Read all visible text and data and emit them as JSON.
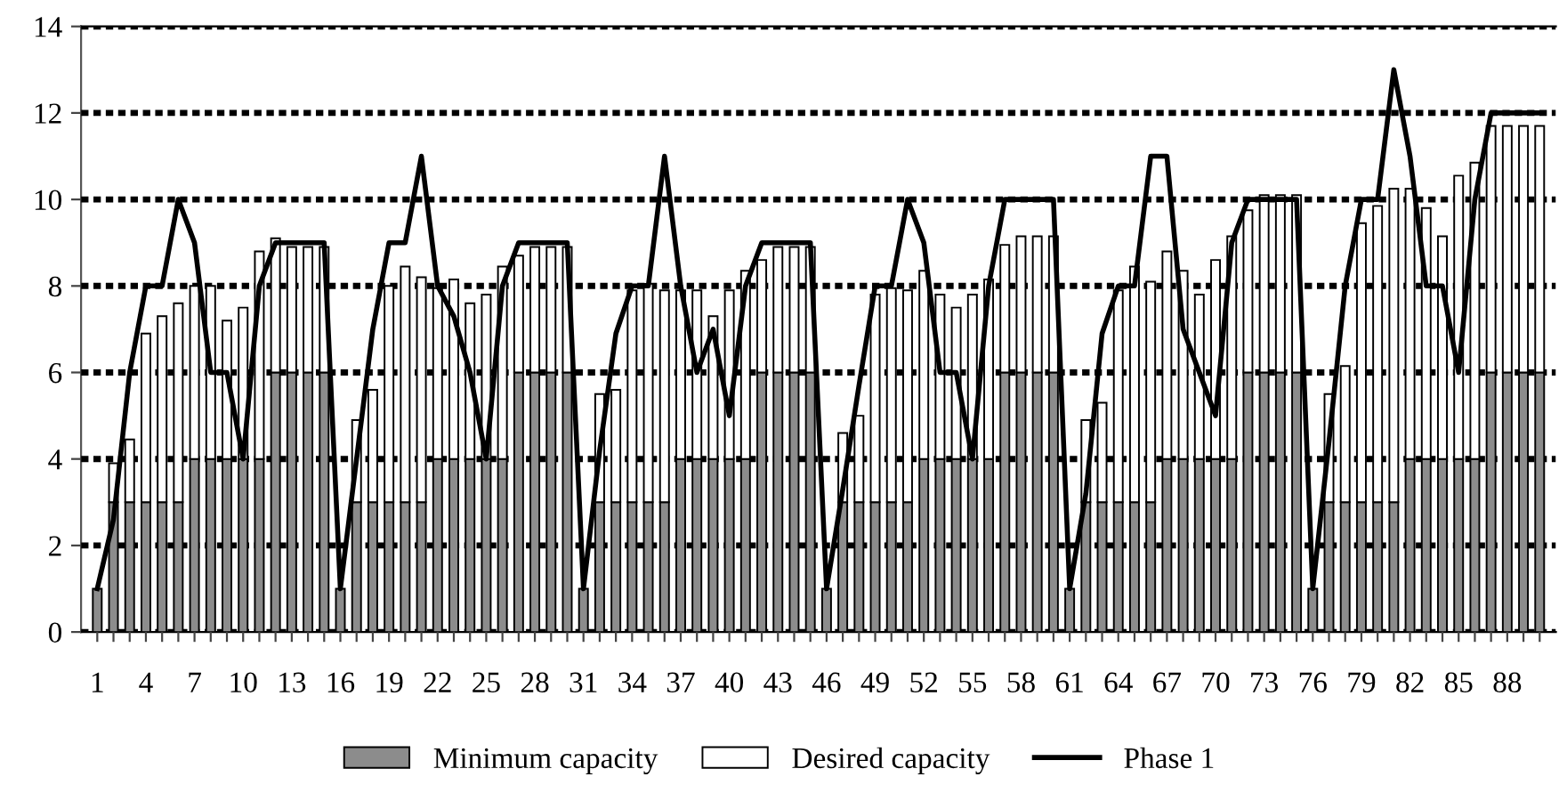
{
  "chart_data": {
    "type": "bar",
    "categories": [
      "1",
      null,
      null,
      "4",
      null,
      null,
      "7",
      null,
      null,
      "10",
      null,
      null,
      "13",
      null,
      null,
      "16",
      null,
      null,
      "19",
      null,
      null,
      "22",
      null,
      null,
      "25",
      null,
      null,
      "28",
      null,
      null,
      "31",
      null,
      null,
      "34",
      null,
      null,
      "37",
      null,
      null,
      "40",
      null,
      null,
      "43",
      null,
      null,
      "46",
      null,
      null,
      "49",
      null,
      null,
      "52",
      null,
      null,
      "55",
      null,
      null,
      "58",
      null,
      null,
      "61",
      null,
      null,
      "64",
      null,
      null,
      "67",
      null,
      null,
      "70",
      null,
      null,
      "73",
      null,
      null,
      "76",
      null,
      null,
      "79",
      null,
      null,
      "82",
      null,
      null,
      "85",
      null,
      null,
      "88",
      null,
      null
    ],
    "series": [
      {
        "name": "Minimum capacity",
        "color": "#8c8c8c",
        "values": [
          1,
          3,
          3,
          3,
          3,
          3,
          4,
          4,
          4,
          4,
          4,
          6,
          6,
          6,
          6,
          1,
          3,
          3,
          3,
          3,
          3,
          4,
          4,
          4,
          4,
          4,
          6,
          6,
          6,
          6,
          1,
          3,
          3,
          3,
          3,
          3,
          4,
          4,
          4,
          4,
          4,
          6,
          6,
          6,
          6,
          1,
          3,
          3,
          3,
          3,
          3,
          4,
          4,
          4,
          4,
          4,
          6,
          6,
          6,
          6,
          1,
          3,
          3,
          3,
          3,
          3,
          4,
          4,
          4,
          4,
          4,
          6,
          6,
          6,
          6,
          1,
          3,
          3,
          3,
          3,
          3,
          4,
          4,
          4,
          4,
          4,
          6,
          6,
          6,
          6
        ]
      },
      {
        "name": "Desired capacity",
        "color": "#ffffff",
        "values": [
          null,
          0.9,
          1.45,
          3.9,
          4.3,
          4.6,
          4,
          4,
          3.2,
          3.5,
          4.8,
          3.1,
          2.9,
          2.9,
          2.9,
          null,
          1.9,
          2.6,
          5,
          5.45,
          5.2,
          3.95,
          4.15,
          3.6,
          3.8,
          4.45,
          2.7,
          2.9,
          2.9,
          2.9,
          null,
          2.5,
          2.6,
          4.9,
          5.05,
          4.9,
          3.9,
          3.9,
          3.3,
          3.9,
          4.35,
          2.6,
          2.9,
          2.9,
          2.9,
          null,
          1.6,
          2,
          4.8,
          4.95,
          4.9,
          4.35,
          3.8,
          3.5,
          3.8,
          4.15,
          2.95,
          3.15,
          3.15,
          3.15,
          null,
          1.9,
          2.3,
          4.9,
          5.45,
          5.1,
          4.8,
          4.35,
          3.8,
          4.6,
          5.15,
          3.75,
          4.1,
          4.1,
          4.1,
          null,
          2.5,
          3.15,
          6.45,
          6.85,
          7.25,
          6.25,
          5.8,
          5.15,
          6.55,
          6.85,
          5.7,
          5.7,
          5.7,
          5.7
        ]
      },
      {
        "name": "Phase 1",
        "type": "line",
        "color": "#000000",
        "values": [
          1,
          2.6,
          6,
          8,
          8,
          10,
          9,
          6,
          6,
          4,
          8,
          9,
          9,
          9,
          9,
          1,
          4,
          7,
          9,
          9,
          11,
          8,
          7.3,
          6,
          4,
          8,
          9,
          9,
          9,
          9,
          1,
          4.2,
          6.9,
          8,
          8,
          11,
          8,
          6,
          7,
          5,
          8,
          9,
          9,
          9,
          9,
          1,
          3.3,
          5.7,
          8,
          8,
          10,
          9,
          6,
          6,
          4,
          8,
          10,
          10,
          10,
          10,
          1,
          3.2,
          6.9,
          8,
          8,
          11,
          11,
          7,
          6,
          5,
          9,
          10,
          10,
          10,
          10,
          1,
          4.4,
          8,
          10,
          10,
          13,
          11,
          8,
          8,
          6,
          10,
          12,
          12,
          12,
          12
        ]
      }
    ],
    "stacked": true,
    "ylim": [
      0,
      14
    ],
    "yticks": [
      0,
      2,
      4,
      6,
      8,
      10,
      12,
      14
    ],
    "grid": "y",
    "legend": "bottom",
    "marker": "none",
    "line_style": "solid"
  }
}
